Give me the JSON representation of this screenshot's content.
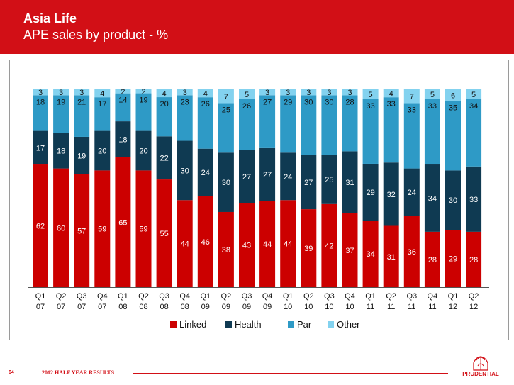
{
  "header": {
    "title": "Asia Life",
    "subtitle": "APE sales by product - %"
  },
  "footer": {
    "page_number": "64",
    "doc_title": "2012 HALF YEAR RESULTS",
    "brand": "PRUDENTIAL"
  },
  "colors": {
    "header_bg": "#d20f16",
    "linked": "#cc0000",
    "health": "#0f3a52",
    "par": "#2e9ac6",
    "other": "#83d2ef"
  },
  "icons": {
    "logo": "prudential-lion-logo"
  },
  "chart_data": {
    "type": "bar",
    "stacked": true,
    "categories": [
      "Q1 07",
      "Q2 07",
      "Q3 07",
      "Q4 07",
      "Q1 08",
      "Q2 08",
      "Q3 08",
      "Q4 08",
      "Q1 09",
      "Q2 09",
      "Q3 09",
      "Q4 09",
      "Q1 10",
      "Q2 10",
      "Q3 10",
      "Q4 10",
      "Q1 11",
      "Q2 11",
      "Q3 11",
      "Q4 11",
      "Q1 12",
      "Q2 12"
    ],
    "series": [
      {
        "name": "Linked",
        "color": "#cc0000",
        "values": [
          62,
          60,
          57,
          59,
          65,
          59,
          55,
          44,
          46,
          38,
          43,
          44,
          44,
          39,
          42,
          37,
          34,
          31,
          36,
          28,
          29,
          28
        ]
      },
      {
        "name": "Health",
        "color": "#0f3a52",
        "values": [
          17,
          18,
          19,
          20,
          18,
          20,
          22,
          30,
          24,
          30,
          27,
          27,
          24,
          27,
          25,
          31,
          29,
          32,
          24,
          34,
          30,
          33
        ]
      },
      {
        "name": "Par",
        "color": "#2e9ac6",
        "values": [
          18,
          19,
          21,
          17,
          14,
          19,
          20,
          23,
          26,
          25,
          26,
          27,
          29,
          30,
          30,
          28,
          33,
          33,
          33,
          33,
          35,
          34
        ]
      },
      {
        "name": "Other",
        "color": "#83d2ef",
        "values": [
          3,
          3,
          3,
          4,
          2,
          2,
          4,
          3,
          4,
          7,
          5,
          3,
          3,
          3,
          3,
          3,
          5,
          4,
          7,
          5,
          6,
          5
        ]
      }
    ],
    "ylim": [
      0,
      100
    ],
    "legend_position": "bottom",
    "grid": false
  }
}
